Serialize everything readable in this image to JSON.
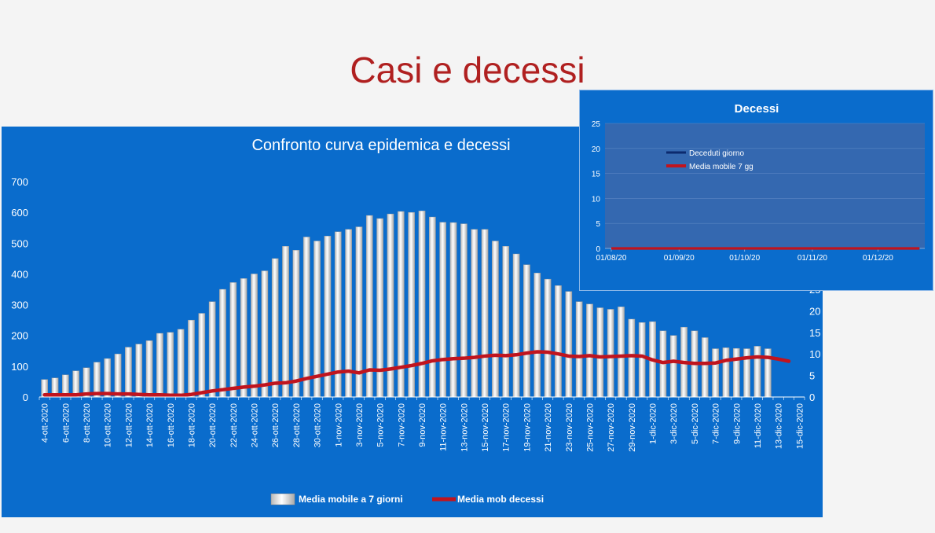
{
  "slide": {
    "title": "Casi e decessi"
  },
  "colors": {
    "panel": "#0a6ccc",
    "bar": "#e8e8e8",
    "line": "#c0141e",
    "inset_plot": "#3468b0",
    "inset_daily": "#0c2a6e"
  },
  "chart_data": [
    {
      "type": "bar",
      "title": "Confronto curva epidemica e decessi",
      "ylim": [
        0,
        700
      ],
      "y_ticks": [
        "0",
        "100",
        "200",
        "300",
        "400",
        "500",
        "600",
        "700"
      ],
      "y2lim": [
        0,
        50
      ],
      "y2_ticks": [
        "0",
        "5",
        "10",
        "15",
        "20",
        "25"
      ],
      "categories": [
        "4-ott-2020",
        "5-ott-2020",
        "6-ott-2020",
        "7-ott-2020",
        "8-ott-2020",
        "9-ott-2020",
        "10-ott-2020",
        "11-ott-2020",
        "12-ott-2020",
        "13-ott-2020",
        "14-ott-2020",
        "15-ott-2020",
        "16-ott-2020",
        "17-ott-2020",
        "18-ott-2020",
        "19-ott-2020",
        "20-ott-2020",
        "21-ott-2020",
        "22-ott-2020",
        "23-ott-2020",
        "24-ott-2020",
        "25-ott-2020",
        "26-ott-2020",
        "27-ott-2020",
        "28-ott-2020",
        "29-ott-2020",
        "30-ott-2020",
        "31-ott-2020",
        "1-nov-2020",
        "2-nov-2020",
        "3-nov-2020",
        "4-nov-2020",
        "5-nov-2020",
        "6-nov-2020",
        "7-nov-2020",
        "8-nov-2020",
        "9-nov-2020",
        "10-nov-2020",
        "11-nov-2020",
        "12-nov-2020",
        "13-nov-2020",
        "14-nov-2020",
        "15-nov-2020",
        "16-nov-2020",
        "17-nov-2020",
        "18-nov-2020",
        "19-nov-2020",
        "20-nov-2020",
        "21-nov-2020",
        "22-nov-2020",
        "23-nov-2020",
        "24-nov-2020",
        "25-nov-2020",
        "26-nov-2020",
        "27-nov-2020",
        "28-nov-2020",
        "29-nov-2020",
        "30-nov-2020",
        "1-dic-2020",
        "2-dic-2020",
        "3-dic-2020",
        "4-dic-2020",
        "5-dic-2020",
        "6-dic-2020",
        "7-dic-2020",
        "8-dic-2020",
        "9-dic-2020",
        "10-dic-2020",
        "11-dic-2020",
        "12-dic-2020",
        "13-dic-2020",
        "14-dic-2020",
        "15-dic-2020"
      ],
      "x_tick_labels": [
        "4-ott-2020",
        "6-ott-2020",
        "8-ott-2020",
        "10-ott-2020",
        "12-ott-2020",
        "14-ott-2020",
        "16-ott-2020",
        "18-ott-2020",
        "20-ott-2020",
        "22-ott-2020",
        "24-ott-2020",
        "26-ott-2020",
        "28-ott-2020",
        "30-ott-2020",
        "1-nov-2020",
        "3-nov-2020",
        "5-nov-2020",
        "7-nov-2020",
        "9-nov-2020",
        "11-nov-2020",
        "13-nov-2020",
        "15-nov-2020",
        "17-nov-2020",
        "19-nov-2020",
        "21-nov-2020",
        "23-nov-2020",
        "25-nov-2020",
        "27-nov-2020",
        "29-nov-2020",
        "1-dic-2020",
        "3-dic-2020",
        "5-dic-2020",
        "7-dic-2020",
        "9-dic-2020",
        "11-dic-2020",
        "13-dic-2020",
        "15-dic-2020"
      ],
      "series": [
        {
          "name": "Media mobile a 7 giorni",
          "type": "bar",
          "axis": "left",
          "values": [
            57,
            62,
            72,
            85,
            95,
            113,
            125,
            140,
            162,
            172,
            183,
            207,
            210,
            220,
            250,
            272,
            310,
            350,
            372,
            385,
            400,
            410,
            450,
            490,
            477,
            520,
            507,
            523,
            537,
            545,
            553,
            590,
            580,
            595,
            603,
            600,
            605,
            585,
            568,
            567,
            563,
            545,
            545,
            507,
            490,
            465,
            430,
            403,
            383,
            362,
            343,
            310,
            302,
            290,
            285,
            293,
            253,
            242,
            245,
            215,
            200,
            227,
            215,
            193,
            157,
            160,
            158,
            157,
            165,
            157,
            null,
            null,
            null
          ]
        },
        {
          "name": "Media mob decessi",
          "type": "line",
          "axis": "right",
          "values": [
            0.5,
            0.5,
            0.5,
            0.5,
            0.7,
            0.8,
            0.8,
            0.7,
            0.7,
            0.6,
            0.5,
            0.5,
            0.4,
            0.4,
            0.6,
            1.0,
            1.4,
            1.7,
            2.0,
            2.3,
            2.5,
            2.8,
            3.2,
            3.3,
            3.7,
            4.3,
            4.8,
            5.3,
            5.8,
            6.0,
            5.6,
            6.3,
            6.2,
            6.5,
            6.9,
            7.3,
            7.8,
            8.4,
            8.7,
            8.9,
            9.0,
            9.2,
            9.5,
            9.7,
            9.6,
            9.8,
            10.2,
            10.5,
            10.4,
            10.0,
            9.5,
            9.4,
            9.6,
            9.3,
            9.4,
            9.5,
            9.6,
            9.5,
            8.6,
            8.0,
            8.3,
            8.0,
            7.8,
            7.8,
            7.9,
            8.5,
            8.8,
            9.1,
            9.3,
            9.2,
            8.8,
            8.3,
            null
          ]
        }
      ],
      "legend": "bottom"
    },
    {
      "type": "line",
      "title": "Decessi",
      "ylim": [
        0,
        25
      ],
      "y_ticks": [
        "0",
        "5",
        "10",
        "15",
        "20",
        "25"
      ],
      "x_tick_labels": [
        "01/08/20",
        "01/09/20",
        "01/10/20",
        "01/11/20",
        "01/12/20"
      ],
      "x_start": "2020-08-01",
      "series": [
        {
          "name": "Deceduti giorno",
          "values": [
            0,
            0,
            0,
            0,
            0,
            0,
            0,
            0,
            0,
            0,
            0,
            0,
            0,
            0,
            0,
            0,
            0,
            0,
            0,
            0,
            0,
            0,
            0,
            0,
            0,
            0,
            0,
            0,
            0,
            0,
            0,
            0,
            0,
            0,
            0,
            0,
            0,
            0,
            0,
            0,
            0,
            0,
            0,
            0,
            0,
            0,
            0,
            0,
            0,
            0,
            0,
            0,
            0,
            0,
            0,
            0,
            0,
            0,
            0,
            0,
            0,
            0,
            0,
            0,
            0,
            0,
            0,
            0,
            0,
            0,
            0,
            0,
            0,
            0,
            0,
            0,
            0,
            0,
            0,
            0,
            0,
            0,
            0,
            0,
            0,
            0,
            0,
            0,
            0,
            0,
            0,
            0,
            0,
            0,
            0,
            0,
            0,
            0,
            0,
            0,
            0,
            0,
            0,
            0,
            0,
            0,
            0,
            0,
            0,
            0,
            0,
            0,
            0,
            0,
            0,
            0,
            0,
            0,
            0,
            0,
            0,
            0,
            0,
            0,
            0,
            0,
            0,
            0,
            0,
            0,
            0,
            0,
            0,
            0,
            0,
            0,
            0,
            0,
            0,
            0,
            0,
            0
          ]
        },
        {
          "name": "Media mobile 7 gg",
          "values": [
            0,
            0,
            0,
            0,
            0,
            0,
            0,
            0,
            0,
            0,
            0,
            0,
            0,
            0,
            0,
            0,
            0,
            0,
            0,
            0,
            0,
            0,
            0,
            0,
            0,
            0,
            0,
            0,
            0,
            0,
            0,
            0,
            0,
            0,
            0,
            0,
            0,
            0,
            0,
            0,
            0,
            0,
            0,
            0,
            0,
            0,
            0,
            0,
            0,
            0,
            0,
            0,
            0,
            0,
            0,
            0,
            0,
            0,
            0,
            0,
            0,
            0,
            0,
            0,
            0,
            0,
            0,
            0,
            0,
            0,
            0,
            0,
            0,
            0,
            0,
            0,
            0,
            0,
            0,
            0,
            0,
            0,
            0,
            0,
            0,
            0,
            0,
            0,
            0,
            0,
            0,
            0,
            0,
            0,
            0,
            0,
            0,
            0,
            0,
            0,
            0,
            0,
            0,
            0,
            0,
            0,
            0,
            0,
            0,
            0,
            0,
            0,
            0,
            0,
            0,
            0,
            0,
            0,
            0,
            0,
            0,
            0,
            0,
            0,
            0,
            0,
            0,
            0,
            0,
            0,
            0,
            0,
            0,
            0,
            0,
            0,
            0,
            0,
            0,
            0,
            0,
            0
          ]
        }
      ],
      "legend": "top-left"
    }
  ]
}
